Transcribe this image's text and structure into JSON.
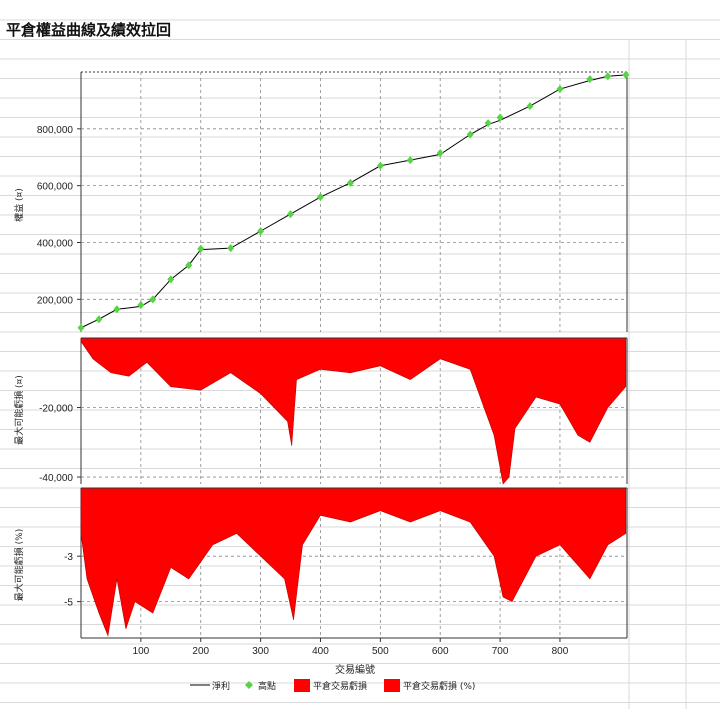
{
  "title": "平倉權益曲線及績效拉回",
  "colors": {
    "equity_line": "#000000",
    "highs": "#55d444",
    "drawdown_fill": "#ff0000",
    "drawdown_stroke": "#bb0000",
    "grid": "#888888"
  },
  "chart_data": [
    {
      "type": "line",
      "panel": "equity",
      "ylabel": "權益 (¤)",
      "xlim": [
        0,
        912
      ],
      "ylim": [
        85000,
        1000000
      ],
      "yticks": [
        200000,
        400000,
        600000,
        800000
      ],
      "ytick_labels": [
        "200,000",
        "400,000",
        "600,000",
        "800,000"
      ],
      "grid": true,
      "series": [
        {
          "name": "淨利",
          "x": [
            0,
            30,
            60,
            100,
            120,
            150,
            180,
            200,
            250,
            300,
            350,
            400,
            450,
            500,
            550,
            600,
            650,
            680,
            700,
            750,
            800,
            850,
            880,
            910
          ],
          "values": [
            100000,
            130000,
            165000,
            175000,
            200000,
            270000,
            320000,
            375000,
            380000,
            440000,
            500000,
            560000,
            610000,
            670000,
            690000,
            710000,
            780000,
            815000,
            830000,
            880000,
            940000,
            970000,
            985000,
            990000
          ]
        },
        {
          "name": "高點",
          "x": [
            0,
            30,
            60,
            100,
            120,
            150,
            180,
            200,
            250,
            300,
            350,
            400,
            450,
            500,
            550,
            600,
            650,
            680,
            700,
            750,
            800,
            850,
            880,
            910
          ],
          "values": [
            100000,
            130000,
            165000,
            180000,
            200000,
            270000,
            320000,
            378000,
            380000,
            440000,
            500000,
            560000,
            610000,
            670000,
            690000,
            715000,
            780000,
            820000,
            840000,
            880000,
            940000,
            975000,
            985000,
            990000
          ]
        }
      ]
    },
    {
      "type": "area",
      "panel": "drawdown_value",
      "ylabel": "最大可能虧損 (¤)",
      "ylim": [
        -42000,
        0
      ],
      "yticks": [
        -20000,
        -40000
      ],
      "ytick_labels": [
        "-20,000",
        "-40,000"
      ],
      "grid": true,
      "series": [
        {
          "name": "平倉交易虧損",
          "x": [
            0,
            20,
            50,
            80,
            110,
            150,
            200,
            250,
            300,
            345,
            352,
            360,
            400,
            450,
            500,
            550,
            600,
            650,
            690,
            705,
            715,
            725,
            760,
            800,
            830,
            850,
            880,
            910
          ],
          "values": [
            -1000,
            -6000,
            -10000,
            -11000,
            -7000,
            -14000,
            -15000,
            -10000,
            -16000,
            -24000,
            -31000,
            -12000,
            -9000,
            -10000,
            -8000,
            -12000,
            -6000,
            -9000,
            -28000,
            -42000,
            -40000,
            -26000,
            -17000,
            -19000,
            -28000,
            -30000,
            -20000,
            -14000
          ]
        }
      ]
    },
    {
      "type": "area",
      "panel": "drawdown_percent",
      "ylabel": "最大可能虧損 (%)",
      "ylim": [
        -6.6,
        0
      ],
      "yticks": [
        -3,
        -5
      ],
      "ytick_labels": [
        "-3",
        "-5"
      ],
      "grid": true,
      "series": [
        {
          "name": "平倉交易虧損 (%)",
          "x": [
            0,
            10,
            30,
            45,
            60,
            75,
            90,
            120,
            150,
            180,
            220,
            260,
            300,
            340,
            355,
            370,
            400,
            450,
            500,
            550,
            600,
            650,
            690,
            705,
            720,
            760,
            800,
            850,
            880,
            910
          ],
          "values": [
            -2,
            -4,
            -5.5,
            -6.5,
            -4,
            -6.2,
            -5,
            -5.5,
            -3.5,
            -4,
            -2.5,
            -2,
            -3,
            -4,
            -5.8,
            -2.5,
            -1.2,
            -1.5,
            -1,
            -1.5,
            -1,
            -1.5,
            -3,
            -4.8,
            -5,
            -3,
            -2.5,
            -4,
            -2.5,
            -2
          ]
        }
      ]
    }
  ],
  "x_axis": {
    "label": "交易編號",
    "ticks": [
      100,
      200,
      300,
      400,
      500,
      600,
      700,
      800
    ]
  },
  "legend": {
    "placement": "bottom",
    "items": [
      {
        "label": "淨利",
        "kind": "line"
      },
      {
        "label": "高點",
        "kind": "diamond"
      },
      {
        "label": "平倉交易虧損",
        "kind": "box"
      },
      {
        "label": "平倉交易虧損 (%)",
        "kind": "box"
      }
    ]
  }
}
